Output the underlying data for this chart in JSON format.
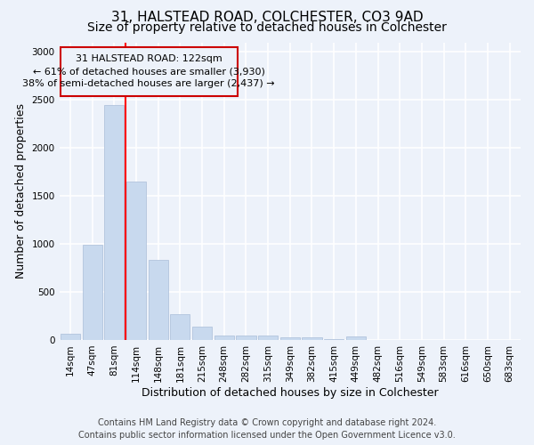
{
  "title1": "31, HALSTEAD ROAD, COLCHESTER, CO3 9AD",
  "title2": "Size of property relative to detached houses in Colchester",
  "xlabel": "Distribution of detached houses by size in Colchester",
  "ylabel": "Number of detached properties",
  "categories": [
    "14sqm",
    "47sqm",
    "81sqm",
    "114sqm",
    "148sqm",
    "181sqm",
    "215sqm",
    "248sqm",
    "282sqm",
    "315sqm",
    "349sqm",
    "382sqm",
    "415sqm",
    "449sqm",
    "482sqm",
    "516sqm",
    "549sqm",
    "583sqm",
    "616sqm",
    "650sqm",
    "683sqm"
  ],
  "values": [
    62,
    990,
    2450,
    1650,
    830,
    270,
    135,
    50,
    50,
    45,
    30,
    25,
    5,
    35,
    0,
    0,
    0,
    0,
    0,
    0,
    0
  ],
  "bar_color": "#c8d9ee",
  "bar_edge_color": "#aabdd8",
  "annotation_title": "31 HALSTEAD ROAD: 122sqm",
  "annotation_line1": "← 61% of detached houses are smaller (3,930)",
  "annotation_line2": "38% of semi-detached houses are larger (2,437) →",
  "annotation_box_color": "#cc0000",
  "ylim": [
    0,
    3100
  ],
  "yticks": [
    0,
    500,
    1000,
    1500,
    2000,
    2500,
    3000
  ],
  "footer1": "Contains HM Land Registry data © Crown copyright and database right 2024.",
  "footer2": "Contains public sector information licensed under the Open Government Licence v3.0.",
  "bg_color": "#edf2fa",
  "grid_color": "#ffffff",
  "title1_fontsize": 11,
  "title2_fontsize": 10,
  "axis_label_fontsize": 9,
  "tick_fontsize": 7.5,
  "footer_fontsize": 7,
  "red_line_x": 2.5
}
